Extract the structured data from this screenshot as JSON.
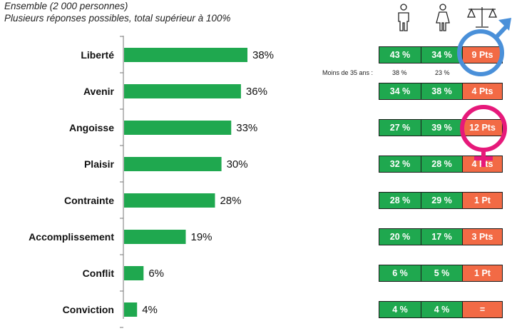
{
  "header": {
    "line1": "Ensemble (2 000 personnes)",
    "line2": "Plusieurs réponses possibles, total supérieur à 100%"
  },
  "chart_data": {
    "type": "bar",
    "orientation": "horizontal",
    "categories": [
      "Liberté",
      "Avenir",
      "Angoisse",
      "Plaisir",
      "Contrainte",
      "Accomplissement",
      "Conflit",
      "Conviction"
    ],
    "values": [
      38,
      36,
      33,
      30,
      28,
      19,
      6,
      4
    ],
    "value_labels": [
      "38%",
      "36%",
      "33%",
      "30%",
      "28%",
      "19%",
      "6%",
      "4%"
    ],
    "xlim": [
      0,
      38
    ],
    "bar_color": "#1fa84f"
  },
  "table": {
    "columns": [
      {
        "icon": "man-icon"
      },
      {
        "icon": "woman-icon"
      },
      {
        "icon": "scales-icon"
      }
    ],
    "rows": [
      {
        "men": "43 %",
        "women": "34 %",
        "gap": "9 Pts"
      },
      {
        "men": "34 %",
        "women": "38 %",
        "gap": "4 Pts"
      },
      {
        "men": "27 %",
        "women": "39 %",
        "gap": "12 Pts"
      },
      {
        "men": "32 %",
        "women": "28 %",
        "gap": "4 Pts"
      },
      {
        "men": "28 %",
        "women": "29 %",
        "gap": "1 Pt"
      },
      {
        "men": "20 %",
        "women": "17 %",
        "gap": "3 Pts"
      },
      {
        "men": "6 %",
        "women": "5 %",
        "gap": "1 Pt"
      },
      {
        "men": "4 %",
        "women": "4 %",
        "gap": "="
      }
    ],
    "colors": {
      "cell_green": "#1fa84f",
      "cell_orange": "#f26a45"
    }
  },
  "under35": {
    "label": "Moins de 35 ans :",
    "men": "38 %",
    "women": "23 %"
  },
  "markers": [
    {
      "icon": "male-symbol-icon",
      "row": 0,
      "color": "#4a90d9"
    },
    {
      "icon": "female-symbol-icon",
      "row": 2,
      "color": "#e6197a"
    }
  ]
}
